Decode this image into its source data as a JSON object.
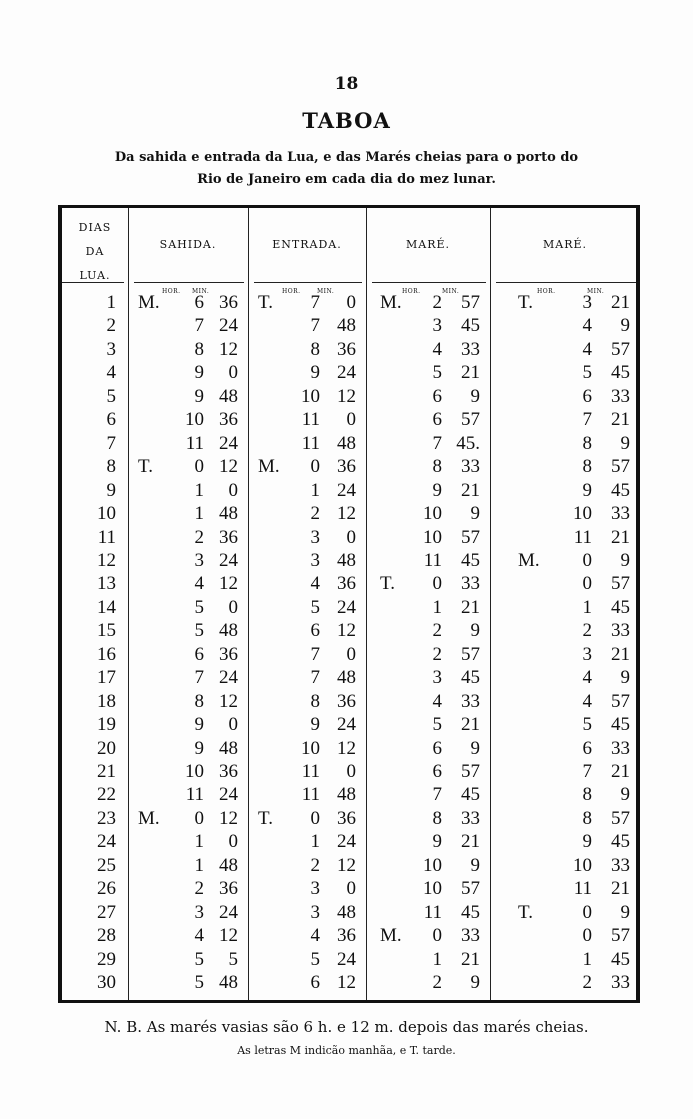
{
  "page_number": "18",
  "title": "TABOA",
  "subtitle_line1": "Da sahida e entrada da Lua, e das Marés cheias para o porto do",
  "subtitle_line2": "Rio de Janeiro em cada dia do mez lunar.",
  "table": {
    "headers": {
      "dias": [
        "DIAS",
        "DA",
        "LUA."
      ],
      "sahida": "SAHIDA.",
      "entrada": "ENTRADA.",
      "mare1": "MARÉ.",
      "mare2": "MARÉ.",
      "hor": "HOR.",
      "min": "MIN."
    },
    "rows": [
      [
        "1",
        "M.",
        "6",
        "36",
        "T.",
        "7",
        "0",
        "M.",
        "2",
        "57",
        "T.",
        "3",
        "21"
      ],
      [
        "2",
        "",
        "7",
        "24",
        "",
        "7",
        "48",
        "",
        "3",
        "45",
        "",
        "4",
        "9"
      ],
      [
        "3",
        "",
        "8",
        "12",
        "",
        "8",
        "36",
        "",
        "4",
        "33",
        "",
        "4",
        "57"
      ],
      [
        "4",
        "",
        "9",
        "0",
        "",
        "9",
        "24",
        "",
        "5",
        "21",
        "",
        "5",
        "45"
      ],
      [
        "5",
        "",
        "9",
        "48",
        "",
        "10",
        "12",
        "",
        "6",
        "9",
        "",
        "6",
        "33"
      ],
      [
        "6",
        "",
        "10",
        "36",
        "",
        "11",
        "0",
        "",
        "6",
        "57",
        "",
        "7",
        "21"
      ],
      [
        "7",
        "",
        "11",
        "24",
        "",
        "11",
        "48",
        "",
        "7",
        "45.",
        "",
        "8",
        "9"
      ],
      [
        "8",
        "T.",
        "0",
        "12",
        "M.",
        "0",
        "36",
        "",
        "8",
        "33",
        "",
        "8",
        "57"
      ],
      [
        "9",
        "",
        "1",
        "0",
        "",
        "1",
        "24",
        "",
        "9",
        "21",
        "",
        "9",
        "45"
      ],
      [
        "10",
        "",
        "1",
        "48",
        "",
        "2",
        "12",
        "",
        "10",
        "9",
        "",
        "10",
        "33"
      ],
      [
        "11",
        "",
        "2",
        "36",
        "",
        "3",
        "0",
        "",
        "10",
        "57",
        "",
        "11",
        "21"
      ],
      [
        "12",
        "",
        "3",
        "24",
        "",
        "3",
        "48",
        "",
        "11",
        "45",
        "M.",
        "0",
        "9"
      ],
      [
        "13",
        "",
        "4",
        "12",
        "",
        "4",
        "36",
        "T.",
        "0",
        "33",
        "",
        "0",
        "57"
      ],
      [
        "14",
        "",
        "5",
        "0",
        "",
        "5",
        "24",
        "",
        "1",
        "21",
        "",
        "1",
        "45"
      ],
      [
        "15",
        "",
        "5",
        "48",
        "",
        "6",
        "12",
        "",
        "2",
        "9",
        "",
        "2",
        "33"
      ],
      [
        "16",
        "",
        "6",
        "36",
        "",
        "7",
        "0",
        "",
        "2",
        "57",
        "",
        "3",
        "21"
      ],
      [
        "17",
        "",
        "7",
        "24",
        "",
        "7",
        "48",
        "",
        "3",
        "45",
        "",
        "4",
        "9"
      ],
      [
        "18",
        "",
        "8",
        "12",
        "",
        "8",
        "36",
        "",
        "4",
        "33",
        "",
        "4",
        "57"
      ],
      [
        "19",
        "",
        "9",
        "0",
        "",
        "9",
        "24",
        "",
        "5",
        "21",
        "",
        "5",
        "45"
      ],
      [
        "20",
        "",
        "9",
        "48",
        "",
        "10",
        "12",
        "",
        "6",
        "9",
        "",
        "6",
        "33"
      ],
      [
        "21",
        "",
        "10",
        "36",
        "",
        "11",
        "0",
        "",
        "6",
        "57",
        "",
        "7",
        "21"
      ],
      [
        "22",
        "",
        "11",
        "24",
        "",
        "11",
        "48",
        "",
        "7",
        "45",
        "",
        "8",
        "9"
      ],
      [
        "23",
        "M.",
        "0",
        "12",
        "T.",
        "0",
        "36",
        "",
        "8",
        "33",
        "",
        "8",
        "57"
      ],
      [
        "24",
        "",
        "1",
        "0",
        "",
        "1",
        "24",
        "",
        "9",
        "21",
        "",
        "9",
        "45"
      ],
      [
        "25",
        "",
        "1",
        "48",
        "",
        "2",
        "12",
        "",
        "10",
        "9",
        "",
        "10",
        "33"
      ],
      [
        "26",
        "",
        "2",
        "36",
        "",
        "3",
        "0",
        "",
        "10",
        "57",
        "",
        "11",
        "21"
      ],
      [
        "27",
        "",
        "3",
        "24",
        "",
        "3",
        "48",
        "",
        "11",
        "45",
        "T.",
        "0",
        "9"
      ],
      [
        "28",
        "",
        "4",
        "12",
        "",
        "4",
        "36",
        "M.",
        "0",
        "33",
        "",
        "0",
        "57"
      ],
      [
        "29",
        "",
        "5",
        "5",
        "",
        "5",
        "24",
        "",
        "1",
        "21",
        "",
        "1",
        "45"
      ],
      [
        "30",
        "",
        "5",
        "48",
        "",
        "6",
        "12",
        "",
        "2",
        "9",
        "",
        "2",
        "33"
      ]
    ]
  },
  "footnote": "N. B. As marés vasias são 6 h. e 12 m. depois das marés cheias.",
  "footnote2": "As letras M indicão manhãa, e T. tarde."
}
